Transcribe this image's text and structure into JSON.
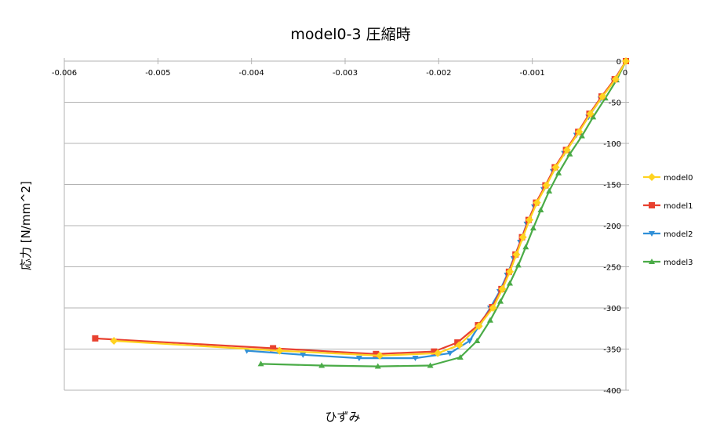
{
  "chart_data": {
    "type": "line",
    "title": "model0-3  圧縮時",
    "xlabel": "ひずみ",
    "ylabel": "応力 [N/mm^2]",
    "xlim": [
      -0.006,
      0
    ],
    "ylim": [
      -400,
      0
    ],
    "x_ticks": [
      -0.006,
      -0.005,
      -0.004,
      -0.003,
      -0.002,
      -0.001,
      0
    ],
    "x_tick_labels": [
      "-0.006",
      "-0.005",
      "-0.004",
      "-0.003",
      "-0.002",
      "-0.001",
      "0"
    ],
    "y_ticks": [
      0,
      -50,
      -100,
      -150,
      -200,
      -250,
      -300,
      -350,
      -400
    ],
    "y_tick_labels": [
      "0",
      "-50",
      "-100",
      "-150",
      "-200",
      "-250",
      "-300",
      "-350",
      "-400"
    ],
    "grid": "horizontal",
    "legend_position": "right",
    "series": [
      {
        "name": "model0",
        "color": "#ffd320",
        "marker": "diamond",
        "x": [
          -0.00547,
          -0.0037,
          -0.00263,
          -0.00201,
          -0.00178,
          -0.00157,
          -0.00142,
          -0.00132,
          -0.00124,
          -0.00117,
          -0.0011,
          -0.00103,
          -0.00095,
          -0.00085,
          -0.00075,
          -0.00063,
          -0.0005,
          -0.00038,
          -0.00025,
          -0.00011,
          0
        ],
        "y": [
          -340,
          -352,
          -358,
          -355,
          -345,
          -322,
          -300,
          -277,
          -256,
          -235,
          -214,
          -193,
          -172,
          -151,
          -129,
          -108,
          -86,
          -64,
          -43,
          -22,
          0
        ]
      },
      {
        "name": "model1",
        "color": "#e8412f",
        "marker": "square",
        "x": [
          -0.00567,
          -0.00377,
          -0.00267,
          -0.00205,
          -0.0018,
          -0.00158,
          -0.00143,
          -0.00133,
          -0.00125,
          -0.00118,
          -0.00111,
          -0.00104,
          -0.00096,
          -0.00086,
          -0.00076,
          -0.00064,
          -0.00051,
          -0.00039,
          -0.00026,
          -0.00012,
          0
        ],
        "y": [
          -337,
          -349,
          -356,
          -353,
          -342,
          -321,
          -299,
          -277,
          -256,
          -235,
          -214,
          -193,
          -172,
          -151,
          -129,
          -108,
          -86,
          -64,
          -43,
          -22,
          0
        ]
      },
      {
        "name": "model2",
        "color": "#2f8fd8",
        "marker": "triangle-down",
        "x": [
          -0.00405,
          -0.00345,
          -0.00285,
          -0.00225,
          -0.00188,
          -0.00167,
          -0.00156,
          -0.00145,
          -0.00135,
          -0.00127,
          -0.0012,
          -0.00113,
          -0.00106,
          -0.00098,
          -0.00088,
          -0.00078,
          -0.00066,
          -0.00053,
          -0.0004,
          -0.00027,
          -0.00013,
          0
        ],
        "y": [
          -352,
          -357,
          -361,
          -361,
          -355,
          -340,
          -320,
          -300,
          -280,
          -260,
          -240,
          -220,
          -198,
          -177,
          -156,
          -134,
          -112,
          -90,
          -68,
          -46,
          -24,
          0
        ]
      },
      {
        "name": "model3",
        "color": "#4aab47",
        "marker": "triangle-up",
        "x": [
          -0.0039,
          -0.00325,
          -0.00265,
          -0.00209,
          -0.00177,
          -0.00159,
          -0.00145,
          -0.00134,
          -0.00124,
          -0.00115,
          -0.00107,
          -0.00099,
          -0.00091,
          -0.00082,
          -0.00072,
          -0.0006,
          -0.00047,
          -0.00035,
          -0.00022,
          -0.0001,
          0
        ],
        "y": [
          -368,
          -370,
          -371,
          -370,
          -360,
          -340,
          -315,
          -292,
          -270,
          -248,
          -226,
          -203,
          -181,
          -158,
          -136,
          -113,
          -91,
          -68,
          -45,
          -23,
          0
        ]
      }
    ]
  }
}
